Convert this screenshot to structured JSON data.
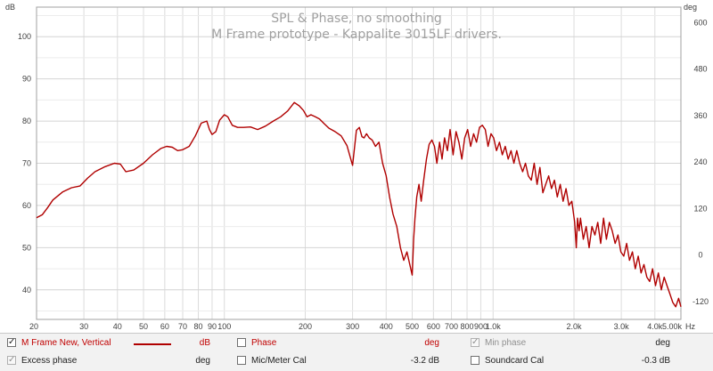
{
  "chart_data": {
    "type": "line",
    "title": "SPL & Phase, no smoothing",
    "subtitle": "M Frame prototype - Kappalite 3015LF drivers.",
    "left_unit": "dB",
    "right_unit": "deg",
    "x_unit": "Hz",
    "x_scale": "log",
    "xlim": [
      20,
      5000
    ],
    "ylim": [
      33,
      107
    ],
    "right_ylim": [
      -166,
      640
    ],
    "grid": true,
    "y_ticks": [
      40,
      50,
      60,
      70,
      80,
      90,
      100
    ],
    "right_ticks": [
      -120,
      0,
      120,
      240,
      360,
      480,
      600
    ],
    "x_ticks": [
      {
        "v": 20,
        "label": "20"
      },
      {
        "v": 30,
        "label": "30"
      },
      {
        "v": 40,
        "label": "40"
      },
      {
        "v": 50,
        "label": "50"
      },
      {
        "v": 60,
        "label": "60"
      },
      {
        "v": 70,
        "label": "70"
      },
      {
        "v": 80,
        "label": "80"
      },
      {
        "v": 90,
        "label": "90"
      },
      {
        "v": 100,
        "label": "100"
      },
      {
        "v": 200,
        "label": "200"
      },
      {
        "v": 300,
        "label": "300"
      },
      {
        "v": 400,
        "label": "400"
      },
      {
        "v": 500,
        "label": "500"
      },
      {
        "v": 600,
        "label": "600"
      },
      {
        "v": 700,
        "label": "700"
      },
      {
        "v": 800,
        "label": "800"
      },
      {
        "v": 900,
        "label": "900"
      },
      {
        "v": 1000,
        "label": "1.0k"
      },
      {
        "v": 2000,
        "label": "2.0k"
      },
      {
        "v": 3000,
        "label": "3.0k"
      },
      {
        "v": 4000,
        "label": "4.0k"
      },
      {
        "v": 5000,
        "label": "5.00k"
      }
    ],
    "series": [
      {
        "name": "M Frame New, Vertical",
        "color": "#b00000",
        "x": [
          20,
          21,
          22,
          23,
          25,
          27,
          29,
          31,
          33,
          36,
          39,
          41,
          43,
          46,
          50,
          54,
          58,
          61,
          64,
          67,
          70,
          74,
          78,
          82,
          86,
          88,
          90,
          93,
          96,
          100,
          103,
          107,
          112,
          118,
          125,
          133,
          142,
          152,
          162,
          172,
          182,
          190,
          197,
          203,
          210,
          218,
          226,
          235,
          245,
          258,
          272,
          286,
          300,
          310,
          318,
          325,
          331,
          338,
          346,
          355,
          365,
          376,
          388,
          400,
          412,
          424,
          438,
          452,
          465,
          478,
          490,
          500,
          506,
          512,
          520,
          530,
          540,
          552,
          565,
          578,
          592,
          605,
          618,
          632,
          646,
          660,
          676,
          692,
          710,
          728,
          746,
          765,
          784,
          804,
          825,
          846,
          868,
          890,
          912,
          935,
          958,
          982,
          1005,
          1030,
          1056,
          1082,
          1110,
          1138,
          1166,
          1195,
          1225,
          1256,
          1288,
          1320,
          1353,
          1387,
          1422,
          1458,
          1494,
          1532,
          1570,
          1610,
          1650,
          1692,
          1734,
          1778,
          1822,
          1868,
          1915,
          1963,
          2012,
          2040,
          2062,
          2090,
          2114,
          2167,
          2221,
          2277,
          2334,
          2392,
          2452,
          2514,
          2577,
          2641,
          2707,
          2775,
          2845,
          2916,
          2989,
          3064,
          3140,
          3219,
          3300,
          3382,
          3467,
          3554,
          3643,
          3734,
          3827,
          3923,
          4022,
          4122,
          4226,
          4331,
          4440,
          4551,
          4665,
          4782,
          4900,
          5000
        ],
        "y": [
          57.1,
          57.8,
          59.5,
          61.3,
          63.2,
          64.2,
          64.6,
          66.5,
          68.0,
          69.2,
          70.0,
          69.8,
          68.0,
          68.4,
          70.0,
          72.0,
          73.5,
          74.0,
          73.8,
          73.0,
          73.2,
          74.0,
          76.5,
          79.5,
          80.0,
          78.0,
          76.8,
          77.5,
          80.2,
          81.5,
          81.0,
          79.0,
          78.5,
          78.5,
          78.6,
          78.0,
          78.8,
          80.0,
          81.0,
          82.4,
          84.4,
          83.6,
          82.5,
          81.0,
          81.5,
          81.0,
          80.5,
          79.4,
          78.3,
          77.5,
          76.5,
          74.2,
          69.5,
          77.8,
          78.5,
          76.3,
          76.0,
          77.0,
          76.0,
          75.5,
          74.0,
          75.0,
          70.0,
          67.0,
          62.0,
          58.0,
          55.0,
          50.0,
          47.0,
          49.0,
          46.0,
          43.5,
          52.0,
          57.0,
          62.0,
          65.0,
          61.0,
          66.0,
          71.0,
          74.5,
          75.5,
          74.0,
          70.0,
          75.0,
          71.0,
          76.0,
          73.0,
          78.0,
          72.0,
          77.5,
          75.0,
          71.0,
          76.0,
          78.0,
          74.0,
          77.0,
          75.0,
          78.5,
          79.0,
          78.0,
          74.0,
          77.0,
          76.0,
          73.0,
          75.0,
          72.0,
          74.0,
          71.0,
          73.0,
          70.0,
          73.0,
          70.0,
          68.0,
          70.0,
          67.0,
          66.0,
          70.0,
          65.0,
          69.0,
          63.0,
          65.0,
          67.0,
          64.0,
          66.0,
          62.0,
          65.0,
          61.0,
          64.0,
          60.0,
          61.0,
          56.0,
          50.0,
          57.0,
          54.0,
          57.0,
          52.0,
          55.0,
          50.0,
          55.0,
          53.0,
          56.0,
          51.0,
          57.0,
          52.0,
          56.0,
          54.0,
          51.0,
          53.0,
          49.0,
          48.0,
          51.0,
          47.0,
          49.0,
          45.0,
          48.0,
          44.0,
          46.0,
          43.0,
          42.0,
          45.0,
          41.0,
          44.0,
          40.0,
          43.0,
          41.0,
          39.0,
          37.0,
          36.0,
          38.0,
          36.0
        ]
      }
    ]
  },
  "legend": {
    "r1c1": {
      "label": "M Frame New, Vertical",
      "unit": "dB",
      "checked": true
    },
    "r1c2": {
      "label": "Phase",
      "unit": "deg",
      "checked": false
    },
    "r1c3": {
      "label": "Min phase",
      "unit": "deg",
      "checked": true
    },
    "r2c1": {
      "label": "Excess phase",
      "unit": "deg",
      "checked": true
    },
    "r2c2": {
      "label": "Mic/Meter Cal",
      "value": "-3.2 dB",
      "checked": false
    },
    "r2c3": {
      "label": "Soundcard Cal",
      "value": "-0.3 dB",
      "checked": false
    }
  }
}
